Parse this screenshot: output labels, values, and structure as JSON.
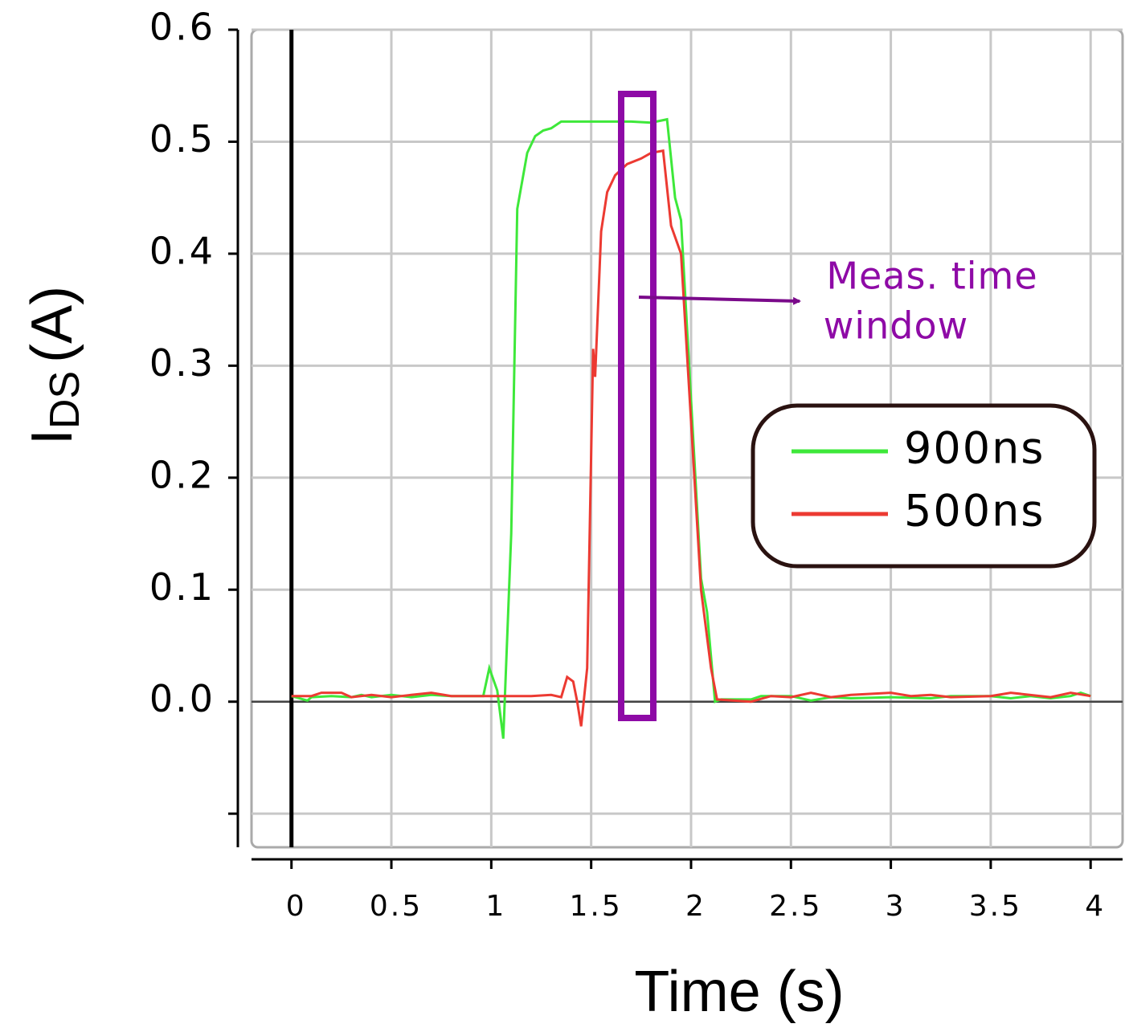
{
  "chart_data": {
    "type": "line",
    "xlabel": "Time (s)",
    "ylabel": [
      "I",
      "DS",
      "(A)"
    ],
    "xlim": [
      -0.2,
      4.16
    ],
    "ylim": [
      -0.13,
      0.6
    ],
    "xticks": [
      0,
      0.5,
      1,
      1.5,
      2,
      2.5,
      3,
      3.5,
      4
    ],
    "yticks": [
      {
        "value": -0.1,
        "label": null
      },
      {
        "value": 0,
        "label": "0.0"
      },
      0.1,
      0.2,
      0.3,
      0.4,
      0.5,
      0.6
    ],
    "grid": true,
    "legend": "right",
    "annotation": [
      "Meas. time",
      "window"
    ],
    "annotation_color": "#8e0aa6",
    "series": [
      {
        "name": "900ns",
        "color": "#3ee83a",
        "x": [
          0,
          0.08,
          0.1,
          0.2,
          0.3,
          0.35,
          0.4,
          0.5,
          0.6,
          0.7,
          0.8,
          0.96,
          0.99,
          1.03,
          1.06,
          1.1,
          1.13,
          1.18,
          1.22,
          1.26,
          1.3,
          1.35,
          1.4,
          1.5,
          1.6,
          1.7,
          1.8,
          1.88,
          1.92,
          1.95,
          2.05,
          2.08,
          2.12,
          2.15,
          2.3,
          2.35,
          2.5,
          2.6,
          2.7,
          2.8,
          3.0,
          3.2,
          3.3,
          3.5,
          3.6,
          3.7,
          3.8,
          3.9,
          3.95,
          4.0
        ],
        "values": [
          0.005,
          0.001,
          0.004,
          0.005,
          0.004,
          0.006,
          0.004,
          0.006,
          0.004,
          0.006,
          0.005,
          0.005,
          0.03,
          0.01,
          -0.033,
          0.15,
          0.44,
          0.49,
          0.505,
          0.51,
          0.512,
          0.518,
          0.518,
          0.518,
          0.518,
          0.518,
          0.517,
          0.52,
          0.45,
          0.43,
          0.11,
          0.08,
          0.0,
          0.002,
          0.002,
          0.005,
          0.005,
          0.001,
          0.004,
          0.003,
          0.004,
          0.003,
          0.005,
          0.005,
          0.003,
          0.005,
          0.003,
          0.005,
          0.008,
          0.005
        ]
      },
      {
        "name": "500ns",
        "color": "#ec3a32",
        "x": [
          0,
          0.1,
          0.15,
          0.25,
          0.3,
          0.4,
          0.5,
          0.6,
          0.7,
          0.8,
          1.0,
          1.2,
          1.3,
          1.35,
          1.38,
          1.41,
          1.43,
          1.45,
          1.48,
          1.51,
          1.52,
          1.55,
          1.58,
          1.62,
          1.68,
          1.75,
          1.8,
          1.86,
          1.9,
          1.95,
          2.0,
          2.05,
          2.1,
          2.13,
          2.3,
          2.4,
          2.5,
          2.6,
          2.7,
          2.8,
          3.0,
          3.1,
          3.2,
          3.3,
          3.5,
          3.6,
          3.8,
          3.9,
          4.0
        ],
        "values": [
          0.005,
          0.005,
          0.008,
          0.008,
          0.004,
          0.006,
          0.004,
          0.006,
          0.008,
          0.005,
          0.005,
          0.005,
          0.006,
          0.004,
          0.022,
          0.018,
          0.0,
          -0.022,
          0.03,
          0.315,
          0.29,
          0.42,
          0.455,
          0.47,
          0.48,
          0.485,
          0.49,
          0.492,
          0.425,
          0.4,
          0.25,
          0.1,
          0.03,
          0.002,
          0.0,
          0.005,
          0.004,
          0.008,
          0.004,
          0.006,
          0.008,
          0.005,
          0.006,
          0.004,
          0.005,
          0.008,
          0.004,
          0.008,
          0.005
        ]
      }
    ]
  }
}
